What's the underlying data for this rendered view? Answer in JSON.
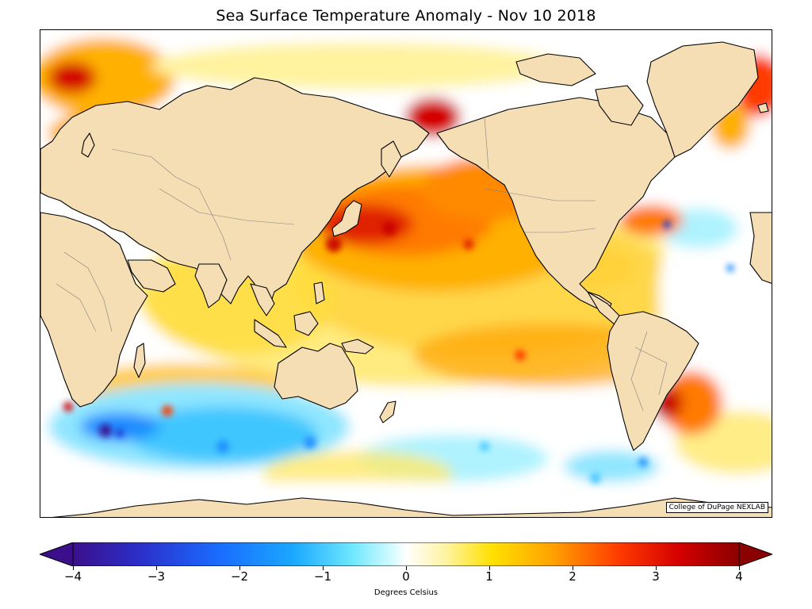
{
  "title": "Sea Surface Temperature Anomaly - Nov 10 2018",
  "credit": "College of DuPage NEXLAB",
  "colorbar": {
    "label": "Degrees Celsius",
    "min": -4,
    "max": 4,
    "ticks": [
      "−4",
      "−3",
      "−2",
      "−1",
      "0",
      "1",
      "2",
      "3",
      "4"
    ],
    "tick_values": [
      -4,
      -3,
      -2,
      -1,
      0,
      1,
      2,
      3,
      4
    ],
    "extend": "both",
    "colormap": [
      "#3b0f8c",
      "#1f3fd6",
      "#1a8cff",
      "#3fc6ff",
      "#aef3ff",
      "#ffffff",
      "#fff3a0",
      "#ffe000",
      "#ffa200",
      "#ff3a00",
      "#d40000",
      "#8b0000"
    ]
  },
  "map": {
    "land_color": "#f5deb3",
    "coastline_color": "#000000",
    "border_color": "#808080",
    "projection": "cylindrical",
    "center": "Pacific"
  }
}
